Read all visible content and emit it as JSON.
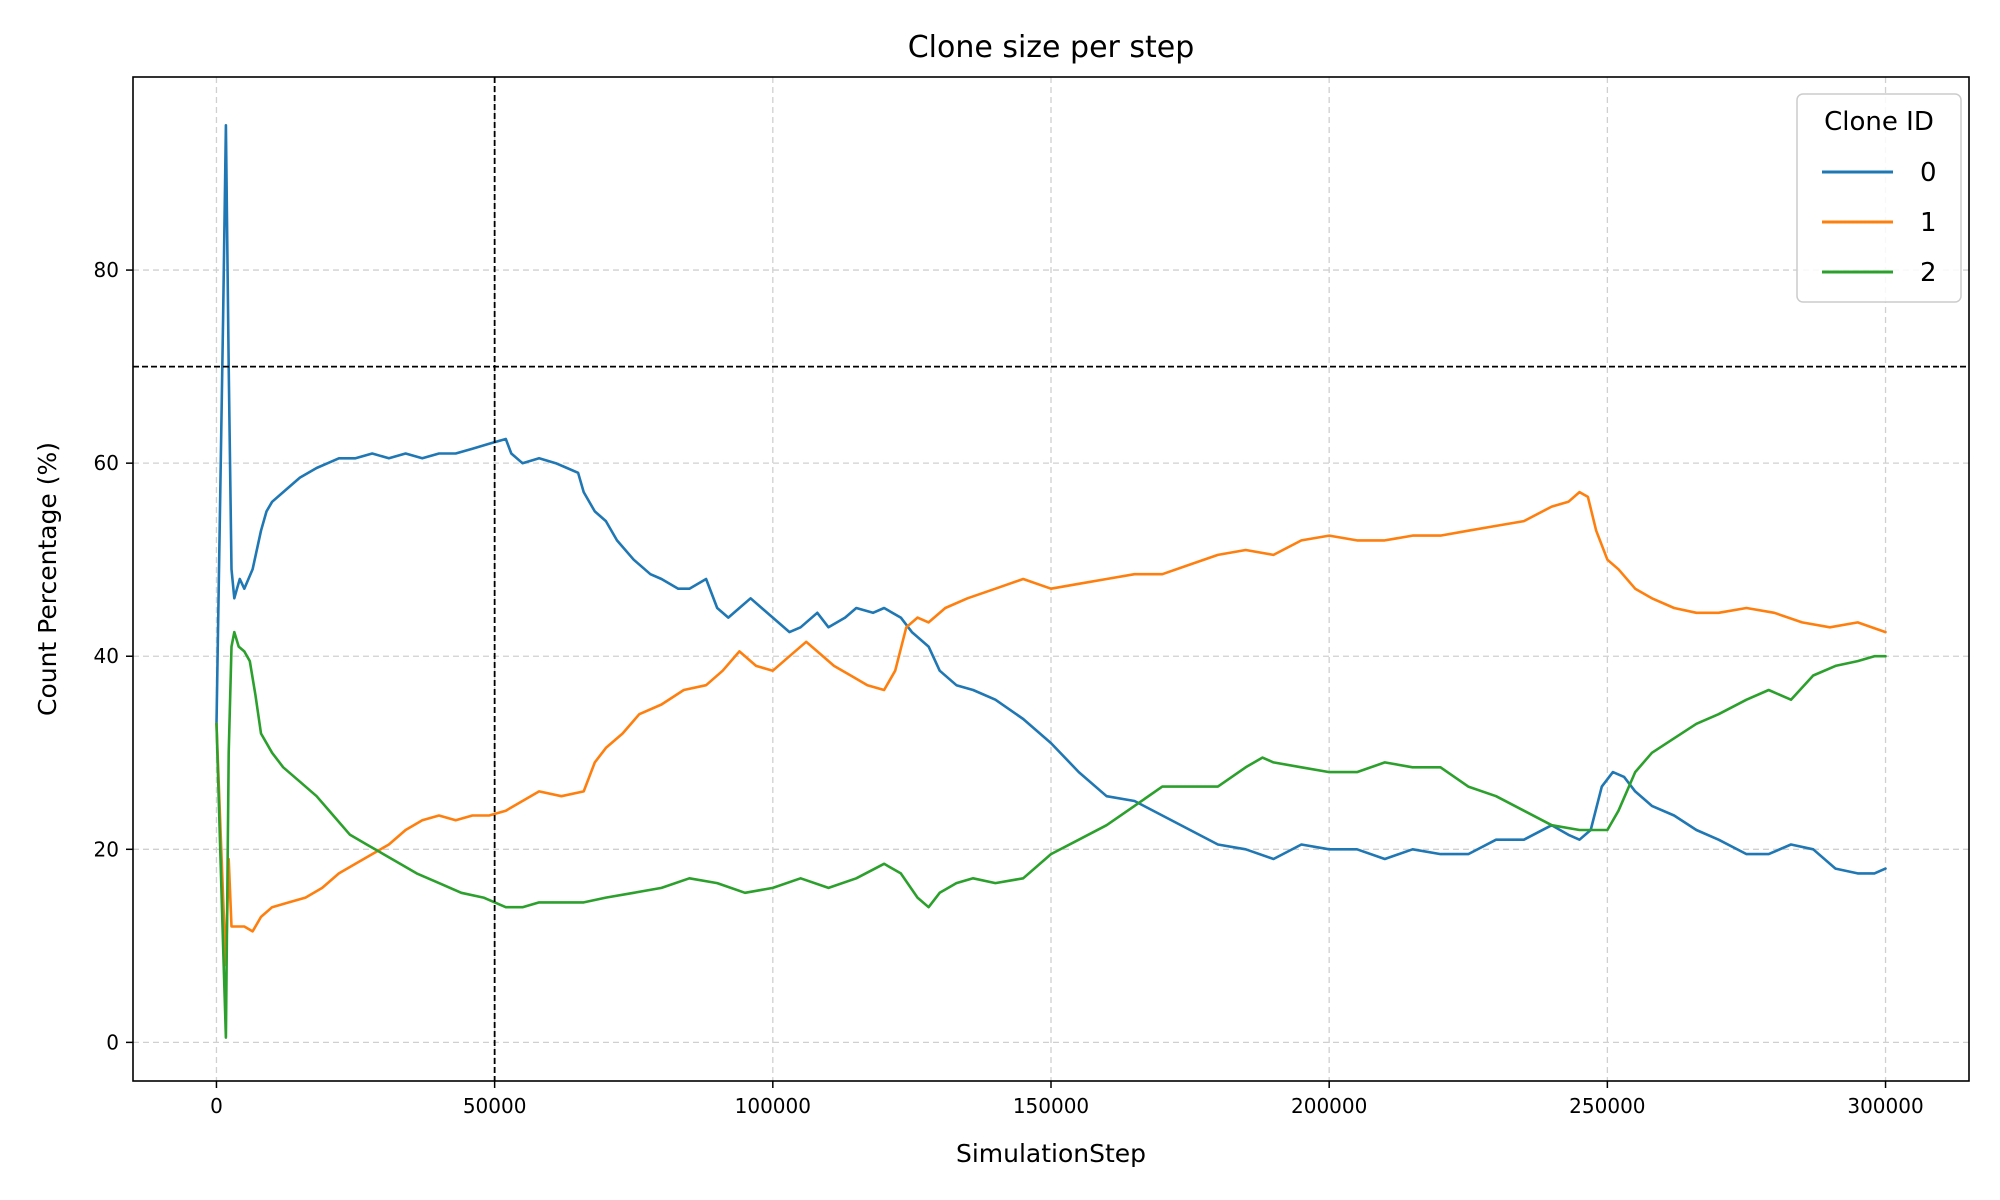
{
  "chart_data": {
    "type": "line",
    "title": "Clone size per step",
    "xlabel": "SimulationStep",
    "ylabel": "Count Percentage (%)",
    "xlim": [
      -15000,
      315000
    ],
    "ylim": [
      -4,
      100
    ],
    "xticks": [
      0,
      50000,
      100000,
      150000,
      200000,
      250000,
      300000
    ],
    "yticks": [
      0,
      20,
      40,
      60,
      80
    ],
    "grid": true,
    "legend": {
      "title": "Clone ID",
      "position": "top-right"
    },
    "reference_lines": {
      "vertical_x": 50000,
      "horizontal_y": 70
    },
    "series": [
      {
        "name": "0",
        "color": "#1f77b4",
        "x": [
          0,
          1200,
          1700,
          2200,
          2700,
          3200,
          3700,
          4200,
          5000,
          6500,
          8000,
          9000,
          10000,
          12000,
          15000,
          18000,
          20000,
          22000,
          25000,
          28000,
          31000,
          34000,
          37000,
          40000,
          43000,
          46000,
          49000,
          52000,
          53000,
          55000,
          58000,
          61000,
          63000,
          65000,
          66000,
          68000,
          70000,
          72000,
          75000,
          78000,
          80000,
          83000,
          85000,
          88000,
          90000,
          92000,
          94000,
          96000,
          98000,
          100000,
          103000,
          105000,
          108000,
          110000,
          113000,
          115000,
          118000,
          120000,
          123000,
          125000,
          128000,
          130000,
          133000,
          136000,
          140000,
          145000,
          150000,
          155000,
          160000,
          165000,
          170000,
          175000,
          180000,
          185000,
          190000,
          195000,
          200000,
          205000,
          210000,
          215000,
          220000,
          225000,
          230000,
          235000,
          240000,
          243000,
          245000,
          247000,
          249000,
          251000,
          253000,
          255000,
          258000,
          262000,
          266000,
          270000,
          275000,
          279000,
          283000,
          287000,
          291000,
          295000,
          298000,
          300000
        ],
        "values": [
          33,
          75,
          95,
          70,
          49,
          46,
          47,
          48,
          47,
          49,
          53,
          55,
          56,
          57,
          58.5,
          59.5,
          60,
          60.5,
          60.5,
          61,
          60.5,
          61,
          60.5,
          61,
          61,
          61.5,
          62,
          62.5,
          61,
          60,
          60.5,
          60,
          59.5,
          59,
          57,
          55,
          54,
          52,
          50,
          48.5,
          48,
          47,
          47,
          48,
          45,
          44,
          45,
          46,
          45,
          44,
          42.5,
          43,
          44.5,
          43,
          44,
          45,
          44.5,
          45,
          44,
          42.5,
          41,
          38.5,
          37,
          36.5,
          35.5,
          33.5,
          31,
          28,
          25.5,
          25,
          23.5,
          22,
          20.5,
          20,
          19,
          20.5,
          20,
          20,
          19,
          20,
          19.5,
          19.5,
          21,
          21,
          22.5,
          21.5,
          21,
          22,
          26.5,
          28,
          27.5,
          26,
          24.5,
          23.5,
          22,
          21,
          19.5,
          19.5,
          20.5,
          20,
          18,
          17.5,
          17.5,
          18
        ]
      },
      {
        "name": "1",
        "color": "#ff7f0e",
        "x": [
          0,
          1200,
          1700,
          2200,
          2700,
          3200,
          4000,
          5000,
          6500,
          8000,
          10000,
          13000,
          16000,
          19000,
          22000,
          25000,
          28000,
          31000,
          34000,
          37000,
          40000,
          43000,
          46000,
          49000,
          52000,
          55000,
          58000,
          62000,
          66000,
          68000,
          70000,
          73000,
          76000,
          80000,
          84000,
          88000,
          91000,
          94000,
          97000,
          100000,
          103000,
          106000,
          108000,
          111000,
          114000,
          117000,
          120000,
          122000,
          124000,
          126000,
          128000,
          131000,
          135000,
          140000,
          145000,
          150000,
          155000,
          160000,
          165000,
          170000,
          175000,
          180000,
          185000,
          190000,
          195000,
          200000,
          205000,
          210000,
          215000,
          220000,
          225000,
          230000,
          235000,
          240000,
          243000,
          245000,
          246500,
          248000,
          250000,
          252000,
          255000,
          258000,
          262000,
          266000,
          270000,
          275000,
          280000,
          285000,
          290000,
          295000,
          300000
        ],
        "values": [
          33,
          15,
          8,
          19,
          12,
          12,
          12,
          12,
          11.5,
          13,
          14,
          14.5,
          15,
          16,
          17.5,
          18.5,
          19.5,
          20.5,
          22,
          23,
          23.5,
          23,
          23.5,
          23.5,
          24,
          25,
          26,
          25.5,
          26,
          29,
          30.5,
          32,
          34,
          35,
          36.5,
          37,
          38.5,
          40.5,
          39,
          38.5,
          40,
          41.5,
          40.5,
          39,
          38,
          37,
          36.5,
          38.5,
          43,
          44,
          43.5,
          45,
          46,
          47,
          48,
          47,
          47.5,
          48,
          48.5,
          48.5,
          49.5,
          50.5,
          51,
          50.5,
          52,
          52.5,
          52,
          52,
          52.5,
          52.5,
          53,
          53.5,
          54,
          55.5,
          56,
          57,
          56.5,
          53,
          50,
          49,
          47,
          46,
          45,
          44.5,
          44.5,
          45,
          44.5,
          43.5,
          43,
          43.5,
          42.5
        ]
      },
      {
        "name": "2",
        "color": "#2ca02c",
        "x": [
          0,
          1200,
          1700,
          2200,
          2700,
          3200,
          4000,
          5000,
          6000,
          7000,
          8000,
          10000,
          12000,
          15000,
          18000,
          21000,
          24000,
          27000,
          30000,
          33000,
          36000,
          40000,
          44000,
          48000,
          52000,
          55000,
          58000,
          62000,
          66000,
          70000,
          75000,
          80000,
          85000,
          90000,
          95000,
          100000,
          105000,
          110000,
          115000,
          120000,
          123000,
          126000,
          128000,
          130000,
          133000,
          136000,
          140000,
          145000,
          150000,
          155000,
          160000,
          165000,
          170000,
          175000,
          180000,
          185000,
          188000,
          190000,
          195000,
          200000,
          205000,
          210000,
          215000,
          220000,
          225000,
          230000,
          235000,
          240000,
          245000,
          250000,
          252000,
          255000,
          258000,
          262000,
          266000,
          270000,
          275000,
          279000,
          283000,
          287000,
          291000,
          295000,
          298000,
          300000
        ],
        "values": [
          33,
          10,
          0.5,
          30,
          41,
          42.5,
          41,
          40.5,
          39.5,
          36,
          32,
          30,
          28.5,
          27,
          25.5,
          23.5,
          21.5,
          20.5,
          19.5,
          18.5,
          17.5,
          16.5,
          15.5,
          15,
          14,
          14,
          14.5,
          14.5,
          14.5,
          15,
          15.5,
          16,
          17,
          16.5,
          15.5,
          16,
          17,
          16,
          17,
          18.5,
          17.5,
          15,
          14,
          15.5,
          16.5,
          17,
          16.5,
          17,
          19.5,
          21,
          22.5,
          24.5,
          26.5,
          26.5,
          26.5,
          28.5,
          29.5,
          29,
          28.5,
          28,
          28,
          29,
          28.5,
          28.5,
          26.5,
          25.5,
          24,
          22.5,
          22,
          22,
          24,
          28,
          30,
          31.5,
          33,
          34,
          35.5,
          36.5,
          35.5,
          38,
          39,
          39.5,
          40,
          40
        ]
      }
    ]
  }
}
